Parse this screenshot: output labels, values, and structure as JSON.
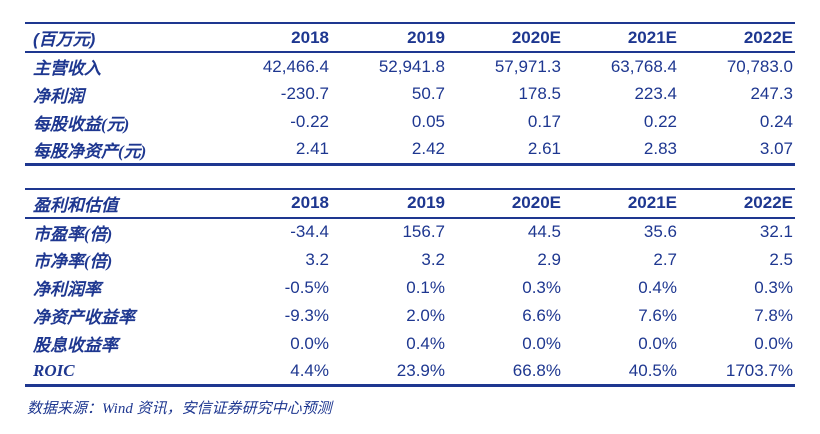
{
  "colors": {
    "primary": "#1E3790"
  },
  "table1": {
    "header": [
      "(百万元)",
      "2018",
      "2019",
      "2020E",
      "2021E",
      "2022E"
    ],
    "rows": [
      {
        "label": "主营收入",
        "values": [
          "42,466.4",
          "52,941.8",
          "57,971.3",
          "63,768.4",
          "70,783.0"
        ]
      },
      {
        "label": "净利润",
        "values": [
          "-230.7",
          "50.7",
          "178.5",
          "223.4",
          "247.3"
        ]
      },
      {
        "label": "每股收益(元)",
        "values": [
          "-0.22",
          "0.05",
          "0.17",
          "0.22",
          "0.24"
        ]
      },
      {
        "label": "每股净资产(元)",
        "values": [
          "2.41",
          "2.42",
          "2.61",
          "2.83",
          "3.07"
        ]
      }
    ]
  },
  "table2": {
    "header": [
      "盈利和估值",
      "2018",
      "2019",
      "2020E",
      "2021E",
      "2022E"
    ],
    "rows": [
      {
        "label": "市盈率(倍)",
        "values": [
          "-34.4",
          "156.7",
          "44.5",
          "35.6",
          "32.1"
        ]
      },
      {
        "label": "市净率(倍)",
        "values": [
          "3.2",
          "3.2",
          "2.9",
          "2.7",
          "2.5"
        ]
      },
      {
        "label": "净利润率",
        "values": [
          "-0.5%",
          "0.1%",
          "0.3%",
          "0.4%",
          "0.3%"
        ]
      },
      {
        "label": "净资产收益率",
        "values": [
          "-9.3%",
          "2.0%",
          "6.6%",
          "7.6%",
          "7.8%"
        ]
      },
      {
        "label": "股息收益率",
        "values": [
          "0.0%",
          "0.4%",
          "0.0%",
          "0.0%",
          "0.0%"
        ]
      },
      {
        "label": "ROIC",
        "values": [
          "4.4%",
          "23.9%",
          "66.8%",
          "40.5%",
          "1703.7%"
        ]
      }
    ]
  },
  "footer": {
    "source_note": "数据来源：Wind 资讯，安信证券研究中心预测"
  }
}
